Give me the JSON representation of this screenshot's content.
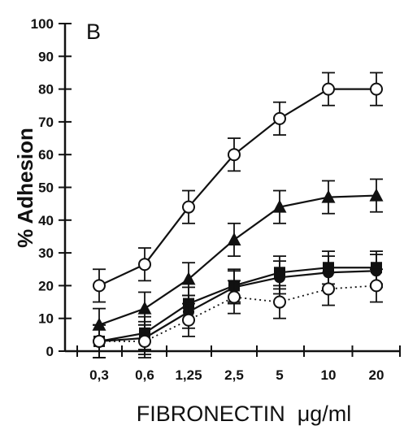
{
  "chart_data": {
    "type": "line",
    "panel_label": "B",
    "xlabel": "FIBRONECTIN  μg/ml",
    "ylabel": "% Adhesion",
    "categories": [
      "0,3",
      "0,6",
      "1,25",
      "2,5",
      "5",
      "10",
      "20"
    ],
    "ylim": [
      0,
      100
    ],
    "yticks": [
      0,
      10,
      20,
      30,
      40,
      50,
      60,
      70,
      80,
      90,
      100
    ],
    "grid": false,
    "legend": "none",
    "series": [
      {
        "marker": "open-circle",
        "line": "solid",
        "values": [
          20,
          26.5,
          44,
          60,
          71,
          80,
          80
        ],
        "errors": [
          5,
          5,
          5,
          5,
          5,
          5,
          5
        ]
      },
      {
        "marker": "filled-triangle",
        "line": "solid",
        "values": [
          8,
          13,
          22,
          34,
          44,
          47,
          47.5
        ],
        "errors": [
          5,
          5,
          5,
          5,
          5,
          5,
          5
        ]
      },
      {
        "marker": "filled-square",
        "line": "solid",
        "values": [
          3,
          5.5,
          14.5,
          20,
          24,
          25.5,
          25.5
        ],
        "errors": [
          5,
          5,
          5,
          5,
          5,
          5,
          5
        ]
      },
      {
        "marker": "filled-circle",
        "line": "solid",
        "values": [
          3,
          4,
          12,
          19.5,
          22.5,
          24,
          24.5
        ],
        "errors": [
          5,
          5,
          5,
          5,
          5,
          5,
          5
        ]
      },
      {
        "marker": "open-circle",
        "line": "dotted",
        "values": [
          3,
          3,
          9.5,
          16.5,
          15,
          19,
          20
        ],
        "errors": [
          5,
          5,
          5,
          5,
          5,
          5,
          5
        ]
      }
    ]
  }
}
